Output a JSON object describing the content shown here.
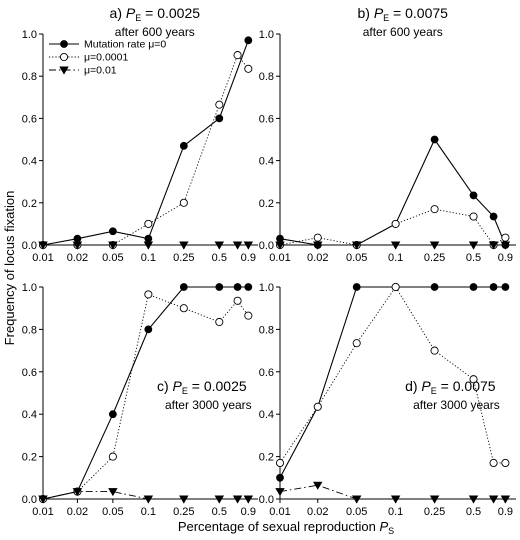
{
  "figure": {
    "xlabel_prefix": "Percentage of sexual reproduction ",
    "xlabel_sym": "P",
    "xlabel_sub": "S",
    "ylabel": "Frequency of locus fixation"
  },
  "chart_data": [
    {
      "type": "line",
      "panel_letter": "a)",
      "pe_sym": "P",
      "pe_sub": "E",
      "pe_value": " = 0.0025",
      "subtitle": "after 600 years",
      "label_position": "top-center",
      "x_ticks": [
        "0.01",
        "0.02",
        "0.05",
        "0.1",
        "0.25",
        "0.5",
        "0.9"
      ],
      "y_ticks": [
        "0.0",
        "0.2",
        "0.4",
        "0.6",
        "0.8",
        "1.0"
      ],
      "ylim": [
        0,
        1
      ],
      "series": [
        {
          "name": "Mutation rate μ=0",
          "style": "solid",
          "marker": "filled-circle",
          "x": [
            0.01,
            0.02,
            0.05,
            0.1,
            0.25,
            0.5,
            0.9
          ],
          "values": [
            0.0,
            0.03,
            0.065,
            0.03,
            0.47,
            0.6,
            0.97
          ]
        },
        {
          "name": "μ=0.0001",
          "style": "dotted",
          "marker": "open-circle",
          "x": [
            0.01,
            0.02,
            0.05,
            0.1,
            0.25,
            0.5,
            0.75,
            0.9
          ],
          "values": [
            0.0,
            0.0,
            0.0,
            0.1,
            0.2,
            0.665,
            0.9,
            0.835
          ]
        },
        {
          "name": "μ=0.01",
          "style": "dashdot",
          "marker": "filled-triangle-down",
          "x": [
            0.01,
            0.02,
            0.05,
            0.1,
            0.25,
            0.5,
            0.75,
            0.9
          ],
          "values": [
            0,
            0,
            0,
            0,
            0,
            0,
            0,
            0
          ]
        }
      ]
    },
    {
      "type": "line",
      "panel_letter": "b)",
      "pe_sym": "P",
      "pe_sub": "E",
      "pe_value": " = 0.0075",
      "subtitle": "after 600 years",
      "label_position": "top-center",
      "x_ticks": [
        "0.01",
        "0.02",
        "0.05",
        "0.1",
        "0.25",
        "0.5",
        "0.9"
      ],
      "y_ticks": [
        "0.0",
        "0.2",
        "0.4",
        "0.6",
        "0.8",
        "1.0"
      ],
      "ylim": [
        0,
        1
      ],
      "series": [
        {
          "name": "Mutation rate μ=0",
          "style": "solid",
          "marker": "filled-circle",
          "x": [
            0.01,
            0.02,
            0.05,
            0.1,
            0.25,
            0.5,
            0.75,
            0.9
          ],
          "values": [
            0.03,
            0.0,
            0.0,
            0.1,
            0.5,
            0.235,
            0.135,
            0.0
          ]
        },
        {
          "name": "μ=0.0001",
          "style": "dotted",
          "marker": "open-circle",
          "x": [
            0.01,
            0.02,
            0.05,
            0.1,
            0.25,
            0.5,
            0.75,
            0.9
          ],
          "values": [
            0.0,
            0.035,
            0.0,
            0.1,
            0.17,
            0.135,
            0.0,
            0.035
          ]
        },
        {
          "name": "μ=0.01",
          "style": "dashdot",
          "marker": "filled-triangle-down",
          "x": [
            0.01,
            0.02,
            0.05,
            0.1,
            0.25,
            0.5,
            0.75,
            0.9
          ],
          "values": [
            0,
            0,
            0,
            0,
            0,
            0,
            0,
            0
          ]
        }
      ]
    },
    {
      "type": "line",
      "panel_letter": "c)",
      "pe_sym": "P",
      "pe_sub": "E",
      "pe_value": " = 0.0025",
      "subtitle": "after 3000 years",
      "label_position": "right-middle",
      "x_ticks": [
        "0.01",
        "0.02",
        "0.05",
        "0.1",
        "0.25",
        "0.5",
        "0.9"
      ],
      "y_ticks": [
        "0.0",
        "0.2",
        "0.4",
        "0.6",
        "0.8",
        "1.0"
      ],
      "ylim": [
        0,
        1
      ],
      "series": [
        {
          "name": "Mutation rate μ=0",
          "style": "solid",
          "marker": "filled-circle",
          "x": [
            0.01,
            0.02,
            0.05,
            0.1,
            0.25,
            0.5,
            0.75,
            0.9
          ],
          "values": [
            0.0,
            0.035,
            0.4,
            0.8,
            1.0,
            1.0,
            1.0,
            1.0
          ]
        },
        {
          "name": "μ=0.0001",
          "style": "dotted",
          "marker": "open-circle",
          "x": [
            0.01,
            0.02,
            0.05,
            0.1,
            0.25,
            0.5,
            0.75,
            0.9
          ],
          "values": [
            0.0,
            0.035,
            0.2,
            0.965,
            0.9,
            0.835,
            0.935,
            0.865
          ]
        },
        {
          "name": "μ=0.01",
          "style": "dashdot",
          "marker": "filled-triangle-down",
          "x": [
            0.01,
            0.02,
            0.05,
            0.1,
            0.25,
            0.5,
            0.75,
            0.9
          ],
          "values": [
            0.0,
            0.035,
            0.035,
            0.0,
            0.0,
            0.0,
            0.0,
            0.0
          ]
        }
      ]
    },
    {
      "type": "line",
      "panel_letter": "d)",
      "pe_sym": "P",
      "pe_sub": "E",
      "pe_value": " = 0.0075",
      "subtitle": "after 3000 years",
      "label_position": "right-middle",
      "x_ticks": [
        "0.01",
        "0.02",
        "0.05",
        "0.1",
        "0.25",
        "0.5",
        "0.9"
      ],
      "y_ticks": [
        "0.0",
        "0.2",
        "0.4",
        "0.6",
        "0.8",
        "1.0"
      ],
      "ylim": [
        0,
        1
      ],
      "series": [
        {
          "name": "Mutation rate μ=0",
          "style": "solid",
          "marker": "filled-circle",
          "x": [
            0.01,
            0.02,
            0.05,
            0.1,
            0.25,
            0.5,
            0.75,
            0.9
          ],
          "values": [
            0.1,
            0.435,
            1.0,
            1.0,
            1.0,
            1.0,
            1.0,
            1.0
          ]
        },
        {
          "name": "μ=0.0001",
          "style": "dotted",
          "marker": "open-circle",
          "x": [
            0.01,
            0.02,
            0.05,
            0.1,
            0.25,
            0.5,
            0.75,
            0.9
          ],
          "values": [
            0.17,
            0.435,
            0.735,
            1.0,
            0.7,
            0.565,
            0.17,
            0.17
          ]
        },
        {
          "name": "μ=0.01",
          "style": "dashdot",
          "marker": "filled-triangle-down",
          "x": [
            0.01,
            0.02,
            0.05,
            0.1,
            0.25,
            0.5,
            0.75,
            0.9
          ],
          "values": [
            0.035,
            0.065,
            0.0,
            0.0,
            0.0,
            0.0,
            0.0,
            0.0
          ]
        }
      ]
    }
  ],
  "legend": {
    "panel_index": 0,
    "placement": "top-left",
    "entries": [
      "Mutation rate μ=0",
      "μ=0.0001",
      "μ=0.01"
    ]
  }
}
